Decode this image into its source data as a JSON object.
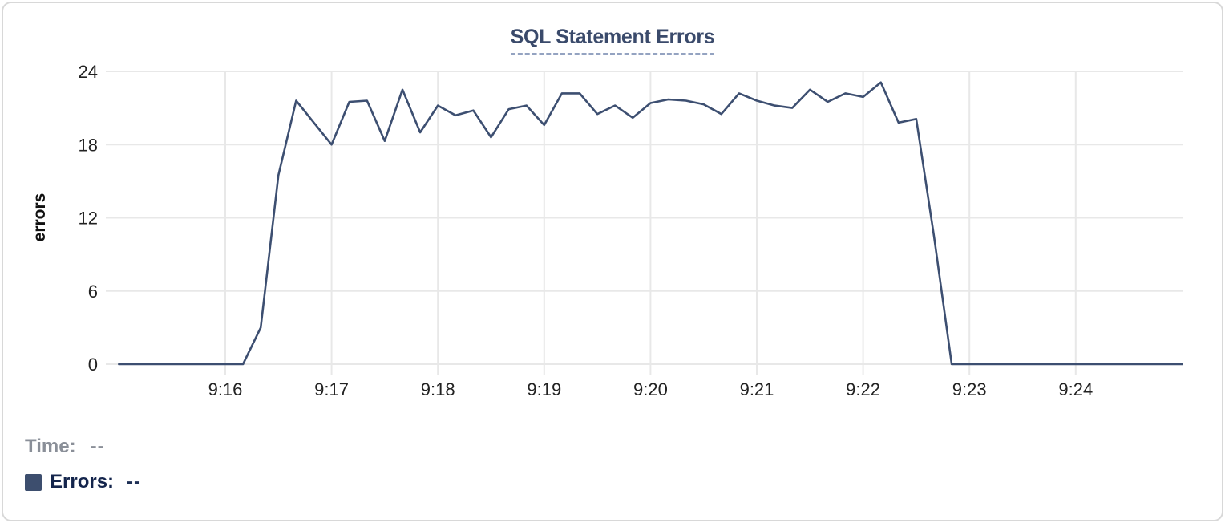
{
  "chart": {
    "title": "SQL Statement Errors",
    "ylabel": "errors"
  },
  "legend": {
    "time_label": "Time:",
    "time_value": "--",
    "errors_label": "Errors:",
    "errors_value": "--"
  },
  "colors": {
    "line": "#3d4f71",
    "swatch": "#3d4e6e",
    "grid": "#e8e8e8",
    "tick_text": "#222222",
    "axis_title_text": "#111111",
    "title_text": "#3a4a6b"
  },
  "chart_data": {
    "type": "line",
    "title": "SQL Statement Errors",
    "xlabel": "",
    "ylabel": "errors",
    "series_name": "Errors",
    "ylim": [
      0,
      24
    ],
    "y_ticks": [
      0,
      6,
      12,
      18,
      24
    ],
    "x_ticks": [
      "9:16",
      "9:17",
      "9:18",
      "9:19",
      "9:20",
      "9:21",
      "9:22",
      "9:23",
      "9:24"
    ],
    "grid": true,
    "legend_position": "bottom-left",
    "line_color": "#3d4f71",
    "points": [
      [
        "9:15:00",
        0
      ],
      [
        "9:15:10",
        0
      ],
      [
        "9:15:20",
        0
      ],
      [
        "9:15:30",
        0
      ],
      [
        "9:15:40",
        0
      ],
      [
        "9:15:50",
        0
      ],
      [
        "9:16:00",
        0
      ],
      [
        "9:16:10",
        0
      ],
      [
        "9:16:20",
        3
      ],
      [
        "9:16:30",
        15.5
      ],
      [
        "9:16:40",
        21.6
      ],
      [
        "9:16:50",
        19.8
      ],
      [
        "9:17:00",
        18
      ],
      [
        "9:17:10",
        21.5
      ],
      [
        "9:17:20",
        21.6
      ],
      [
        "9:17:30",
        18.3
      ],
      [
        "9:17:40",
        22.5
      ],
      [
        "9:17:50",
        19
      ],
      [
        "9:18:00",
        21.2
      ],
      [
        "9:18:10",
        20.4
      ],
      [
        "9:18:20",
        20.8
      ],
      [
        "9:18:30",
        18.6
      ],
      [
        "9:18:40",
        20.9
      ],
      [
        "9:18:50",
        21.2
      ],
      [
        "9:19:00",
        19.6
      ],
      [
        "9:19:10",
        22.2
      ],
      [
        "9:19:20",
        22.2
      ],
      [
        "9:19:30",
        20.5
      ],
      [
        "9:19:40",
        21.2
      ],
      [
        "9:19:50",
        20.2
      ],
      [
        "9:20:00",
        21.4
      ],
      [
        "9:20:10",
        21.7
      ],
      [
        "9:20:20",
        21.6
      ],
      [
        "9:20:30",
        21.3
      ],
      [
        "9:20:40",
        20.5
      ],
      [
        "9:20:50",
        22.2
      ],
      [
        "9:21:00",
        21.6
      ],
      [
        "9:21:10",
        21.2
      ],
      [
        "9:21:20",
        21.0
      ],
      [
        "9:21:30",
        22.5
      ],
      [
        "9:21:40",
        21.5
      ],
      [
        "9:21:50",
        22.2
      ],
      [
        "9:22:00",
        21.9
      ],
      [
        "9:22:10",
        23.1
      ],
      [
        "9:22:20",
        19.8
      ],
      [
        "9:22:30",
        20.1
      ],
      [
        "9:22:40",
        10.5
      ],
      [
        "9:22:50",
        0
      ],
      [
        "9:23:00",
        0
      ],
      [
        "9:23:10",
        0
      ],
      [
        "9:23:20",
        0
      ],
      [
        "9:23:30",
        0
      ],
      [
        "9:23:40",
        0
      ],
      [
        "9:23:50",
        0
      ],
      [
        "9:24:00",
        0
      ],
      [
        "9:24:10",
        0
      ],
      [
        "9:24:20",
        0
      ],
      [
        "9:24:30",
        0
      ],
      [
        "9:24:40",
        0
      ],
      [
        "9:24:50",
        0
      ],
      [
        "9:25:00",
        0
      ]
    ]
  }
}
